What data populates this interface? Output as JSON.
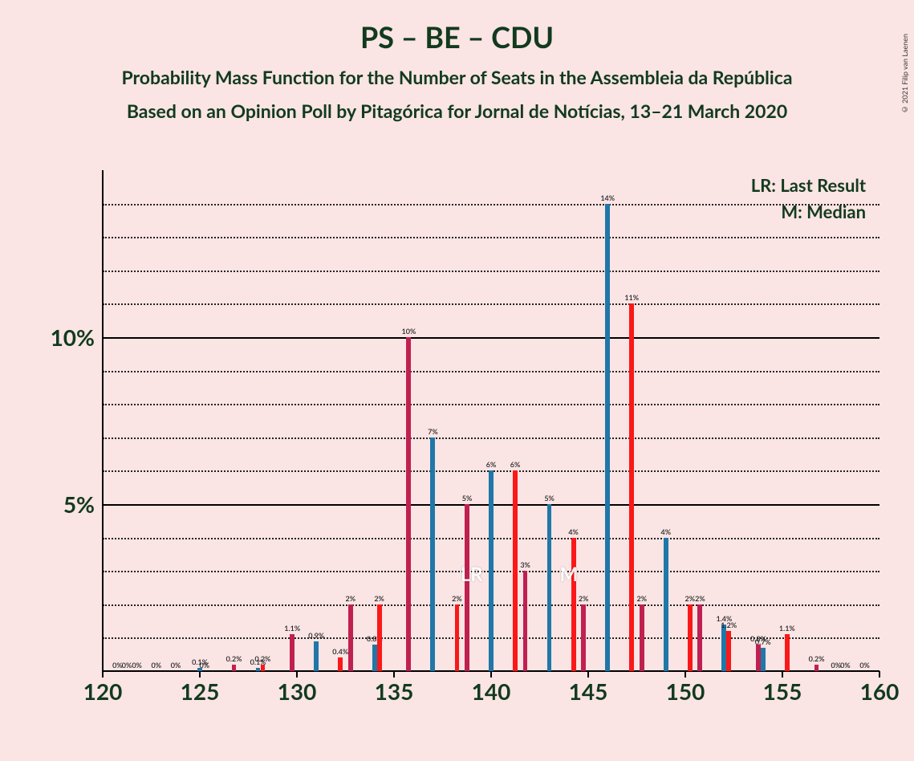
{
  "title": "PS – BE – CDU",
  "subtitle1": "Probability Mass Function for the Number of Seats in the Assembleia da República",
  "subtitle2": "Based on an Opinion Poll by Pitagórica for Jornal de Notícias, 13–21 March 2020",
  "copyright": "© 2021 Filip van Laenen",
  "legend": {
    "lr": "LR: Last Result",
    "m": "M: Median"
  },
  "chart": {
    "type": "bar-grouped-histogram",
    "background_color": "#fae4e4",
    "title_color": "#123a1e",
    "title_fontsize": 36,
    "subtitle_fontsize": 23,
    "xlim": [
      120,
      160
    ],
    "ylim": [
      0,
      15
    ],
    "ymajor_ticks": [
      5,
      10
    ],
    "yminor_step": 1,
    "xmajor_step": 5,
    "grid_major_color": "#000000",
    "grid_minor_color": "#000000",
    "axis_line_color": "#000000",
    "series_colors": [
      "#c02050",
      "#2077a8",
      "#fa1818"
    ],
    "bar_group_width": 0.72,
    "axis_label_fontsize": 28,
    "bar_label_fontsize": 9,
    "yaxis_labels": {
      "5": "5%",
      "10": "10%"
    },
    "xaxis_labels": {
      "120": "120",
      "125": "125",
      "130": "130",
      "135": "135",
      "140": "140",
      "145": "145",
      "150": "150",
      "155": "155",
      "160": "160"
    },
    "markers": {
      "LR": {
        "x": 139,
        "text": "LR"
      },
      "M": {
        "x": 144,
        "text": "M"
      }
    },
    "data": [
      {
        "x": 121,
        "values": [
          0,
          null,
          0
        ],
        "labels": [
          "0%",
          null,
          "0%"
        ]
      },
      {
        "x": 122,
        "values": [
          0,
          null,
          null
        ],
        "labels": [
          "0%",
          null,
          null
        ]
      },
      {
        "x": 123,
        "values": [
          0,
          null,
          null
        ],
        "labels": [
          "0%",
          null,
          null
        ]
      },
      {
        "x": 124,
        "values": [
          0,
          null,
          null
        ],
        "labels": [
          "0%",
          null,
          null
        ]
      },
      {
        "x": 125,
        "values": [
          null,
          0.1,
          0
        ],
        "labels": [
          null,
          "0.1%",
          "0%"
        ]
      },
      {
        "x": 126,
        "values": [
          null,
          null,
          null
        ],
        "labels": [
          null,
          null,
          null
        ]
      },
      {
        "x": 127,
        "values": [
          0.2,
          null,
          null
        ],
        "labels": [
          "0.2%",
          null,
          null
        ]
      },
      {
        "x": 128,
        "values": [
          null,
          0.1,
          0.2
        ],
        "labels": [
          null,
          "0.1%",
          "0.2%"
        ]
      },
      {
        "x": 129,
        "values": [
          null,
          null,
          null
        ],
        "labels": [
          null,
          null,
          null
        ]
      },
      {
        "x": 130,
        "values": [
          1.1,
          null,
          null
        ],
        "labels": [
          "1.1%",
          null,
          null
        ]
      },
      {
        "x": 131,
        "values": [
          null,
          0.9,
          null
        ],
        "labels": [
          null,
          "0.9%",
          null
        ]
      },
      {
        "x": 132,
        "values": [
          null,
          null,
          0.4
        ],
        "labels": [
          null,
          null,
          "0.4%"
        ]
      },
      {
        "x": 133,
        "values": [
          2,
          null,
          null
        ],
        "labels": [
          "2%",
          null,
          null
        ]
      },
      {
        "x": 134,
        "values": [
          null,
          0.8,
          2
        ],
        "labels": [
          null,
          "0.8%",
          "2%"
        ]
      },
      {
        "x": 135,
        "values": [
          null,
          null,
          null
        ],
        "labels": [
          null,
          null,
          null
        ]
      },
      {
        "x": 136,
        "values": [
          10,
          null,
          null
        ],
        "labels": [
          "10%",
          null,
          null
        ]
      },
      {
        "x": 137,
        "values": [
          null,
          7,
          null
        ],
        "labels": [
          null,
          "7%",
          null
        ]
      },
      {
        "x": 138,
        "values": [
          null,
          null,
          2
        ],
        "labels": [
          null,
          null,
          "2%"
        ]
      },
      {
        "x": 139,
        "values": [
          5,
          null,
          null
        ],
        "labels": [
          "5%",
          null,
          null
        ]
      },
      {
        "x": 140,
        "values": [
          null,
          6,
          null
        ],
        "labels": [
          null,
          "6%",
          null
        ]
      },
      {
        "x": 141,
        "values": [
          null,
          null,
          6
        ],
        "labels": [
          null,
          null,
          "6%"
        ]
      },
      {
        "x": 142,
        "values": [
          3,
          null,
          null
        ],
        "labels": [
          "3%",
          null,
          null
        ]
      },
      {
        "x": 143,
        "values": [
          null,
          5,
          null
        ],
        "labels": [
          null,
          "5%",
          null
        ]
      },
      {
        "x": 144,
        "values": [
          null,
          null,
          4
        ],
        "labels": [
          null,
          null,
          "4%"
        ]
      },
      {
        "x": 145,
        "values": [
          2,
          null,
          null
        ],
        "labels": [
          "2%",
          null,
          null
        ]
      },
      {
        "x": 146,
        "values": [
          null,
          14,
          null
        ],
        "labels": [
          null,
          "14%",
          null
        ]
      },
      {
        "x": 147,
        "values": [
          null,
          null,
          11
        ],
        "labels": [
          null,
          null,
          "11%"
        ]
      },
      {
        "x": 148,
        "values": [
          2,
          null,
          null
        ],
        "labels": [
          "2%",
          null,
          null
        ]
      },
      {
        "x": 149,
        "values": [
          null,
          4,
          null
        ],
        "labels": [
          null,
          "4%",
          null
        ]
      },
      {
        "x": 150,
        "values": [
          null,
          null,
          2
        ],
        "labels": [
          null,
          null,
          "2%"
        ]
      },
      {
        "x": 151,
        "values": [
          2,
          null,
          null
        ],
        "labels": [
          "2%",
          null,
          null
        ]
      },
      {
        "x": 152,
        "values": [
          null,
          1.4,
          1.2
        ],
        "labels": [
          null,
          "1.4%",
          "1.2%"
        ]
      },
      {
        "x": 153,
        "values": [
          null,
          null,
          null
        ],
        "labels": [
          null,
          null,
          null
        ]
      },
      {
        "x": 154,
        "values": [
          0.8,
          0.7,
          null
        ],
        "labels": [
          "0.8%",
          "0.7%",
          null
        ]
      },
      {
        "x": 155,
        "values": [
          null,
          null,
          1.1
        ],
        "labels": [
          null,
          null,
          "1.1%"
        ]
      },
      {
        "x": 156,
        "values": [
          null,
          null,
          null
        ],
        "labels": [
          null,
          null,
          null
        ]
      },
      {
        "x": 157,
        "values": [
          0.2,
          null,
          null
        ],
        "labels": [
          "0.2%",
          null,
          null
        ]
      },
      {
        "x": 158,
        "values": [
          0,
          null,
          0
        ],
        "labels": [
          "0%",
          null,
          "0%"
        ]
      },
      {
        "x": 159,
        "values": [
          null,
          null,
          0
        ],
        "labels": [
          null,
          null,
          "0%"
        ]
      }
    ]
  }
}
